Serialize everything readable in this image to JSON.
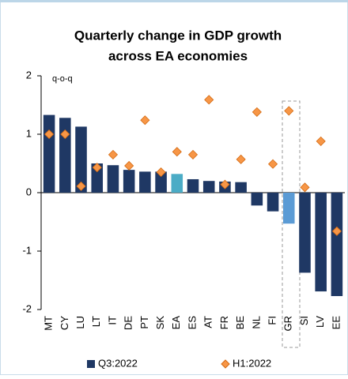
{
  "chart_data": {
    "type": "bar",
    "title": "Quarterly change in GDP growth",
    "subtitle": "across EA economies",
    "y_label": "q-o-q",
    "categories": [
      "MT",
      "CY",
      "LU",
      "LT",
      "IT",
      "DE",
      "PT",
      "SK",
      "EA",
      "ES",
      "AT",
      "FR",
      "BE",
      "NL",
      "FI",
      "GR",
      "SI",
      "LV",
      "EE"
    ],
    "series": [
      {
        "name": "Q3:2022",
        "type": "bar",
        "color": "#1f3864",
        "colors": [
          "#1f3864",
          "#1f3864",
          "#1f3864",
          "#1f3864",
          "#1f3864",
          "#1f3864",
          "#1f3864",
          "#1f3864",
          "#4bacc6",
          "#1f3864",
          "#1f3864",
          "#1f3864",
          "#1f3864",
          "#1f3864",
          "#1f3864",
          "#5b9bd5",
          "#1f3864",
          "#1f3864",
          "#1f3864"
        ],
        "values": [
          1.33,
          1.28,
          1.13,
          0.5,
          0.47,
          0.39,
          0.36,
          0.36,
          0.32,
          0.23,
          0.2,
          0.19,
          0.18,
          -0.22,
          -0.32,
          -0.53,
          -1.37,
          -1.69,
          -1.77
        ]
      },
      {
        "name": "H1:2022",
        "type": "scatter",
        "color": "#f79646",
        "values": [
          1.0,
          1.0,
          0.11,
          0.43,
          0.65,
          0.46,
          1.24,
          0.35,
          0.7,
          0.65,
          1.59,
          0.14,
          0.57,
          1.38,
          0.49,
          1.4,
          0.09,
          0.88,
          -0.66
        ]
      }
    ],
    "ylim": [
      -2,
      2
    ],
    "yticks": [
      -2,
      -1,
      0,
      1,
      2
    ],
    "grid": false
  }
}
